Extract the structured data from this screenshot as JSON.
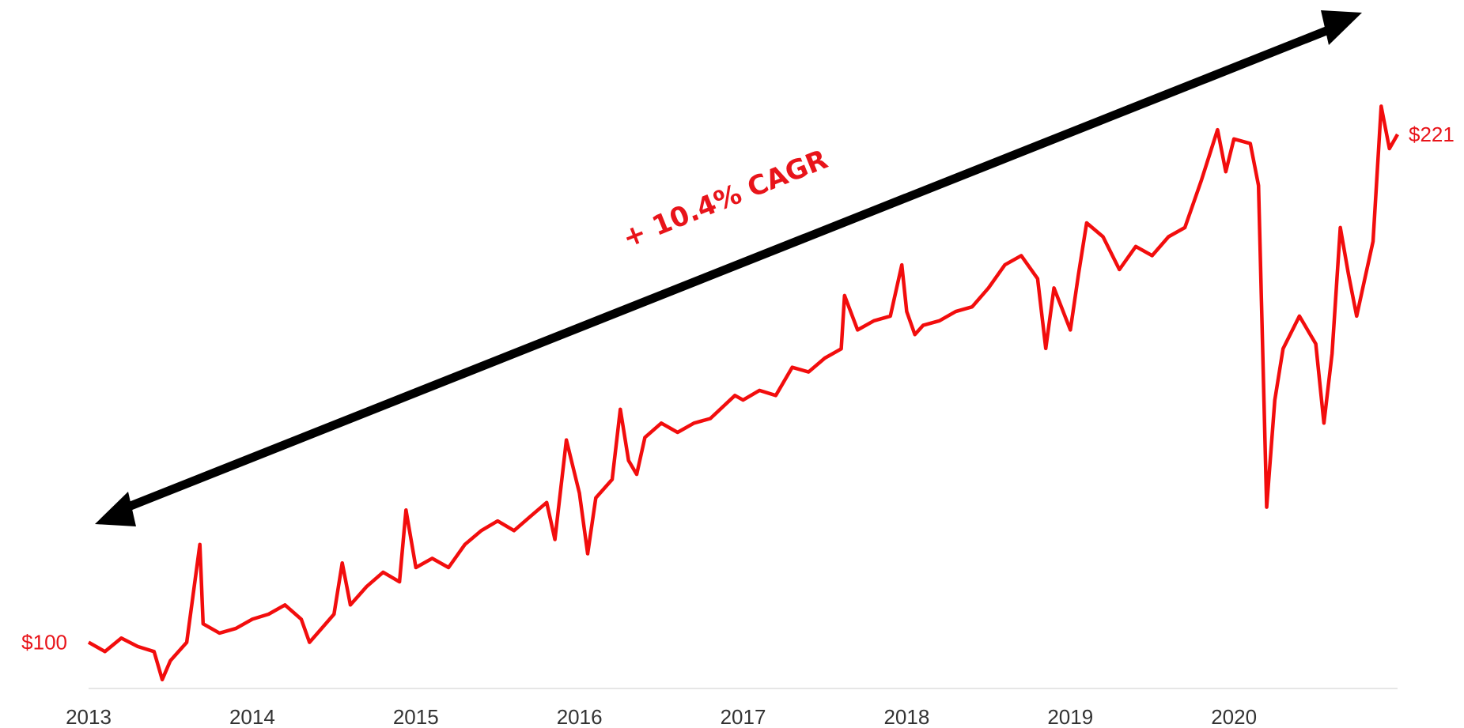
{
  "chart_data": {
    "type": "line",
    "annotation": "+ 10.4% CAGR",
    "color": "#f20d0d",
    "xlim": [
      2013,
      2021
    ],
    "xticks": [
      2013,
      2014,
      2015,
      2016,
      2017,
      2018,
      2019,
      2020
    ],
    "ylim": [
      89,
      253
    ],
    "x": [
      2013.0,
      2013.1,
      2013.2,
      2013.3,
      2013.4,
      2013.45,
      2013.5,
      2013.6,
      2013.68,
      2013.7,
      2013.8,
      2013.9,
      2014.0,
      2014.1,
      2014.2,
      2014.3,
      2014.35,
      2014.4,
      2014.5,
      2014.55,
      2014.6,
      2014.7,
      2014.8,
      2014.9,
      2014.94,
      2015.0,
      2015.1,
      2015.2,
      2015.3,
      2015.4,
      2015.5,
      2015.6,
      2015.7,
      2015.8,
      2015.85,
      2015.92,
      2016.0,
      2016.05,
      2016.1,
      2016.2,
      2016.25,
      2016.3,
      2016.35,
      2016.4,
      2016.5,
      2016.6,
      2016.7,
      2016.8,
      2016.95,
      2017.0,
      2017.1,
      2017.2,
      2017.3,
      2017.4,
      2017.5,
      2017.6,
      2017.62,
      2017.7,
      2017.8,
      2017.9,
      2017.97,
      2018.0,
      2018.05,
      2018.1,
      2018.2,
      2018.3,
      2018.4,
      2018.5,
      2018.6,
      2018.7,
      2018.8,
      2018.85,
      2018.9,
      2019.0,
      2019.05,
      2019.1,
      2019.2,
      2019.3,
      2019.4,
      2019.5,
      2019.6,
      2019.7,
      2019.8,
      2019.9,
      2019.95,
      2020.0,
      2020.1,
      2020.15,
      2020.2,
      2020.25,
      2020.3,
      2020.4,
      2020.5,
      2020.55,
      2020.6,
      2020.65,
      2020.7,
      2020.75,
      2020.8,
      2020.85,
      2020.9,
      2020.95,
      2021.0
    ],
    "values": [
      100,
      97.8,
      101,
      99,
      97.8,
      91.1,
      95.6,
      100,
      123.3,
      104.4,
      102.2,
      103.3,
      105.5,
      106.7,
      108.9,
      105.5,
      100,
      102.2,
      106.7,
      118.9,
      108.9,
      113.3,
      116.7,
      114.4,
      131.5,
      117.8,
      120,
      117.8,
      123.3,
      126.6,
      128.9,
      126.6,
      130,
      133.3,
      124.5,
      148.2,
      135.5,
      121.1,
      134.4,
      138.8,
      155.5,
      143.3,
      140,
      148.8,
      152.2,
      150,
      152.2,
      153.3,
      158.8,
      157.7,
      160,
      158.8,
      165.5,
      164.4,
      167.7,
      169.9,
      182.6,
      174.4,
      176.6,
      177.7,
      189.9,
      178.8,
      173.3,
      175.5,
      176.6,
      178.8,
      179.9,
      184.4,
      189.9,
      192.1,
      186.6,
      170,
      184.4,
      174.4,
      187.7,
      199.9,
      196.6,
      188.8,
      194.3,
      192.1,
      196.6,
      198.8,
      209.9,
      222.1,
      212.1,
      219.9,
      218.8,
      208.8,
      132.2,
      157.7,
      169.9,
      177.7,
      171.1,
      152.2,
      168.8,
      198.8,
      187.7,
      177.7,
      186.6,
      195.5,
      227.7,
      217.6,
      221
    ],
    "value_labels": [
      "$100",
      null,
      null,
      null,
      null,
      null,
      null,
      null,
      null,
      null,
      null,
      null,
      null,
      null,
      null,
      null,
      null,
      null,
      null,
      null,
      null,
      null,
      null,
      null,
      null,
      null,
      null,
      null,
      null,
      null,
      null,
      null,
      null,
      null,
      null,
      null,
      null,
      null,
      null,
      null,
      null,
      null,
      null,
      null,
      null,
      null,
      null,
      null,
      null,
      null,
      null,
      null,
      null,
      null,
      null,
      null,
      null,
      null,
      null,
      null,
      null,
      null,
      null,
      null,
      null,
      null,
      null,
      null,
      null,
      null,
      null,
      null,
      null,
      null,
      null,
      null,
      null,
      null,
      null,
      null,
      null,
      null,
      null,
      null,
      null,
      null,
      null,
      null,
      null,
      null,
      null,
      null,
      null,
      null,
      null,
      null,
      null,
      null,
      null,
      null,
      null,
      null,
      "$221"
    ]
  }
}
